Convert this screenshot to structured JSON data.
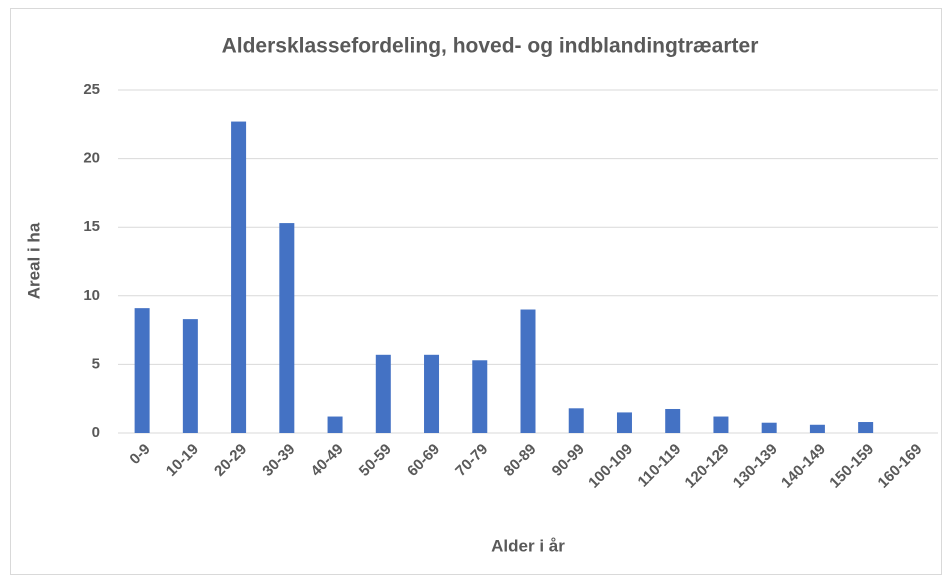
{
  "chart_data": {
    "type": "bar",
    "title": "Aldersklassefordeling, hoved- og indblandingtræarter",
    "x_label": "Alder i år",
    "y_label": "Areal i ha",
    "categories": [
      "0-9",
      "10-19",
      "20-29",
      "30-39",
      "40-49",
      "50-59",
      "60-69",
      "70-79",
      "80-89",
      "90-99",
      "100-109",
      "110-119",
      "120-129",
      "130-139",
      "140-149",
      "150-159",
      "160-169"
    ],
    "values": [
      9.1,
      8.3,
      22.7,
      15.3,
      1.2,
      5.7,
      5.7,
      5.3,
      9.0,
      1.8,
      1.5,
      1.75,
      1.2,
      0.75,
      0.6,
      0.8,
      0
    ],
    "color": "#4472c4",
    "ylim": [
      0,
      25
    ],
    "yticks": [
      0,
      5,
      10,
      15,
      20,
      25
    ],
    "grid": true
  }
}
